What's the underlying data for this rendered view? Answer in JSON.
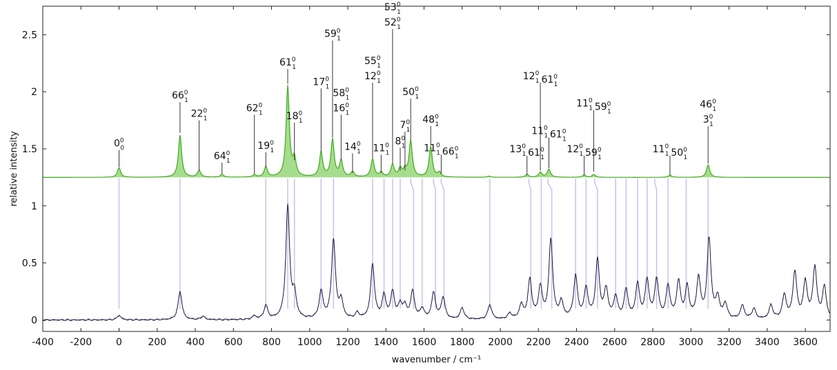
{
  "chart_data": {
    "type": "line",
    "title": "",
    "xlabel": "wavenumber / cm⁻¹",
    "ylabel": "relative intensity",
    "xlim": [
      -400,
      3730
    ],
    "ylim": [
      -0.1,
      2.75
    ],
    "x_ticks": [
      -400,
      -200,
      0,
      200,
      400,
      600,
      800,
      1000,
      1200,
      1400,
      1600,
      1800,
      2000,
      2200,
      2400,
      2600,
      2800,
      3000,
      3200,
      3400,
      3600
    ],
    "y_ticks": [
      0,
      0.5,
      1,
      1.5,
      2,
      2.5
    ],
    "y_tick_labels": [
      "0",
      "0.5",
      "1",
      "1.5",
      "2",
      "2.5"
    ],
    "grid": false,
    "legend": "none",
    "colors": {
      "simulated": "#3daa1e",
      "simulated_fill": "#a6dd8c",
      "experimental": "#161640",
      "connector": "#c3c3ee",
      "label_line": "#333333",
      "frame": "#222222"
    },
    "series": [
      {
        "role": "simulated",
        "baseline": 1.25,
        "linewidth": 10,
        "peaks": [
          [
            0,
            0.085
          ],
          [
            320,
            0.37
          ],
          [
            420,
            0.06
          ],
          [
            540,
            0.025
          ],
          [
            710,
            0.02
          ],
          [
            770,
            0.09
          ],
          [
            885,
            0.795
          ],
          [
            920,
            0.15
          ],
          [
            1060,
            0.215
          ],
          [
            1120,
            0.33
          ],
          [
            1165,
            0.14
          ],
          [
            1225,
            0.045
          ],
          [
            1330,
            0.16
          ],
          [
            1375,
            0.04
          ],
          [
            1435,
            0.11
          ],
          [
            1475,
            0.07
          ],
          [
            1500,
            0.06
          ],
          [
            1530,
            0.32
          ],
          [
            1635,
            0.27
          ],
          [
            1680,
            0.04
          ],
          [
            1940,
            0.01
          ],
          [
            2140,
            0.025
          ],
          [
            2210,
            0.045
          ],
          [
            2255,
            0.07
          ],
          [
            2440,
            0.02
          ],
          [
            2490,
            0.025
          ],
          [
            2890,
            0.02
          ],
          [
            3090,
            0.11
          ]
        ]
      },
      {
        "role": "experimental",
        "baseline": 0.0,
        "linewidth": 12,
        "peaks": [
          [
            0,
            0.04
          ],
          [
            320,
            0.25
          ],
          [
            440,
            0.03
          ],
          [
            710,
            0.03
          ],
          [
            770,
            0.12
          ],
          [
            885,
            0.99
          ],
          [
            920,
            0.2
          ],
          [
            1060,
            0.24
          ],
          [
            1125,
            0.7
          ],
          [
            1165,
            0.15
          ],
          [
            1250,
            0.05
          ],
          [
            1330,
            0.48
          ],
          [
            1390,
            0.2
          ],
          [
            1435,
            0.23
          ],
          [
            1475,
            0.12
          ],
          [
            1500,
            0.1
          ],
          [
            1540,
            0.24
          ],
          [
            1590,
            0.09
          ],
          [
            1650,
            0.23
          ],
          [
            1700,
            0.19
          ],
          [
            1800,
            0.1
          ],
          [
            1945,
            0.13
          ],
          [
            2050,
            0.05
          ],
          [
            2110,
            0.12
          ],
          [
            2155,
            0.34
          ],
          [
            2210,
            0.27
          ],
          [
            2265,
            0.69
          ],
          [
            2320,
            0.14
          ],
          [
            2395,
            0.37
          ],
          [
            2450,
            0.26
          ],
          [
            2510,
            0.51
          ],
          [
            2555,
            0.25
          ],
          [
            2605,
            0.19
          ],
          [
            2660,
            0.25
          ],
          [
            2720,
            0.3
          ],
          [
            2770,
            0.33
          ],
          [
            2820,
            0.34
          ],
          [
            2880,
            0.28
          ],
          [
            2935,
            0.32
          ],
          [
            2980,
            0.27
          ],
          [
            3040,
            0.35
          ],
          [
            3095,
            0.7
          ],
          [
            3140,
            0.18
          ],
          [
            3180,
            0.13
          ],
          [
            3270,
            0.12
          ],
          [
            3330,
            0.09
          ],
          [
            3420,
            0.12
          ],
          [
            3490,
            0.21
          ],
          [
            3545,
            0.41
          ],
          [
            3600,
            0.32
          ],
          [
            3650,
            0.45
          ],
          [
            3700,
            0.28
          ]
        ]
      }
    ],
    "connectors": [
      {
        "x": 0
      },
      {
        "x": 320
      },
      {
        "x": 770
      },
      {
        "x": 885
      },
      {
        "x": 920
      },
      {
        "x": 1060
      },
      {
        "x": 1125
      },
      {
        "x": 1330
      },
      {
        "x": 1390
      },
      {
        "x": 1435
      },
      {
        "x": 1475
      },
      {
        "x": 1530,
        "x2": 1545
      },
      {
        "x": 1590
      },
      {
        "x": 1650,
        "x2": 1660
      },
      {
        "x": 1690,
        "x2": 1705
      },
      {
        "x": 1945
      },
      {
        "x": 2150,
        "x2": 2160
      },
      {
        "x": 2215
      },
      {
        "x": 2250,
        "x2": 2270
      },
      {
        "x": 2395
      },
      {
        "x": 2450
      },
      {
        "x": 2495,
        "x2": 2510
      },
      {
        "x": 2605
      },
      {
        "x": 2660
      },
      {
        "x": 2720
      },
      {
        "x": 2770
      },
      {
        "x": 2810,
        "x2": 2820
      },
      {
        "x": 2880
      },
      {
        "x": 2975
      },
      {
        "x": 3090
      }
    ],
    "annotations": [
      {
        "x": 0,
        "y_tip": 1.34,
        "y_text": 1.52,
        "lines": [
          [
            [
              "0",
              "0",
              "0"
            ]
          ]
        ]
      },
      {
        "x": 320,
        "y_tip": 1.64,
        "y_text": 1.94,
        "lines": [
          [
            [
              "66",
              "0",
              "1"
            ]
          ]
        ]
      },
      {
        "x": 420,
        "y_tip": 1.31,
        "y_text": 1.78,
        "lines": [
          [
            [
              "22",
              "0",
              "1"
            ]
          ]
        ]
      },
      {
        "x": 540,
        "y_tip": 1.28,
        "y_text": 1.41,
        "lines": [
          [
            [
              "64",
              "0",
              "1"
            ]
          ]
        ]
      },
      {
        "x": 710,
        "y_tip": 1.28,
        "y_text": 1.83,
        "lines": [
          [
            [
              "62",
              "0",
              "1"
            ]
          ]
        ]
      },
      {
        "x": 770,
        "y_tip": 1.34,
        "y_text": 1.5,
        "lines": [
          [
            [
              "19",
              "0",
              "1"
            ]
          ]
        ]
      },
      {
        "x": 885,
        "y_tip": 2.07,
        "y_text": 2.23,
        "lines": [
          [
            [
              "61",
              "0",
              "1"
            ]
          ]
        ]
      },
      {
        "x": 920,
        "y_tip": 1.4,
        "y_text": 1.76,
        "lines": [
          [
            [
              "18",
              "0",
              "1"
            ]
          ]
        ]
      },
      {
        "x": 1060,
        "y_tip": 1.47,
        "y_text": 2.06,
        "lines": [
          [
            [
              "17",
              "0",
              "1"
            ]
          ]
        ]
      },
      {
        "x": 1120,
        "y_tip": 1.6,
        "y_text": 2.48,
        "lines": [
          [
            [
              "59",
              "0",
              "1"
            ]
          ]
        ]
      },
      {
        "x": 1165,
        "y_tip": 1.4,
        "y_text": 1.83,
        "lines": [
          [
            [
              "58",
              "0",
              "1"
            ]
          ],
          [
            [
              "16",
              "0",
              "1"
            ]
          ]
        ]
      },
      {
        "x": 1225,
        "y_tip": 1.29,
        "y_text": 1.49,
        "lines": [
          [
            [
              "14",
              "0",
              "1"
            ]
          ]
        ]
      },
      {
        "x": 1330,
        "y_tip": 1.42,
        "y_text": 2.11,
        "lines": [
          [
            [
              "55",
              "0",
              "1"
            ]
          ],
          [
            [
              "12",
              "0",
              "1"
            ]
          ]
        ]
      },
      {
        "x": 1375,
        "y_tip": 1.29,
        "y_text": 1.48,
        "lines": [
          [
            [
              "11",
              "0",
              "1"
            ]
          ]
        ]
      },
      {
        "x": 1435,
        "y_tip": 1.37,
        "y_text": 2.58,
        "lines": [
          [
            [
              "53",
              "0",
              "1"
            ]
          ],
          [
            [
              "52",
              "0",
              "1"
            ]
          ]
        ]
      },
      {
        "x": 1475,
        "y_tip": 1.31,
        "y_text": 1.54,
        "lines": [
          [
            [
              "8",
              "0",
              "1"
            ]
          ]
        ]
      },
      {
        "x": 1500,
        "y_tip": 1.31,
        "y_text": 1.68,
        "lines": [
          [
            [
              "7",
              "0",
              "1"
            ]
          ]
        ]
      },
      {
        "x": 1530,
        "y_tip": 1.58,
        "y_text": 1.97,
        "lines": [
          [
            [
              "50",
              "0",
              "1"
            ]
          ]
        ]
      },
      {
        "x": 1635,
        "y_tip": 1.53,
        "y_text": 1.73,
        "lines": [
          [
            [
              "48",
              "0",
              "1"
            ]
          ]
        ]
      },
      {
        "x": 1690,
        "y_tip": 1.28,
        "y_text": 1.48,
        "lines": [
          [
            [
              "11",
              "0",
              "1"
            ],
            [
              "66",
              "0",
              "1"
            ]
          ]
        ]
      },
      {
        "x": 2140,
        "y_tip": 1.27,
        "y_text": 1.47,
        "lines": [
          [
            [
              "13",
              "0",
              "1"
            ],
            [
              "61",
              "0",
              "1"
            ]
          ]
        ]
      },
      {
        "x": 2210,
        "y_tip": 1.31,
        "y_text": 2.11,
        "lines": [
          [
            [
              "12",
              "0",
              "1"
            ],
            [
              "61",
              "0",
              "1"
            ]
          ]
        ]
      },
      {
        "x": 2255,
        "y_tip": 1.33,
        "y_text": 1.63,
        "lines": [
          [
            [
              "11",
              "0",
              "1"
            ],
            [
              "61",
              "0",
              "1"
            ]
          ]
        ]
      },
      {
        "x": 2440,
        "y_tip": 1.27,
        "y_text": 1.47,
        "lines": [
          [
            [
              "12",
              "0",
              "1"
            ],
            [
              "59",
              "0",
              "1"
            ]
          ]
        ]
      },
      {
        "x": 2490,
        "y_tip": 1.3,
        "y_text": 1.87,
        "lines": [
          [
            [
              "11",
              "0",
              "1"
            ],
            [
              "59",
              "0",
              "1"
            ]
          ]
        ]
      },
      {
        "x": 2890,
        "y_tip": 1.27,
        "y_text": 1.47,
        "lines": [
          [
            [
              "11",
              "0",
              "1"
            ],
            [
              "50",
              "0",
              "1"
            ]
          ]
        ]
      },
      {
        "x": 3090,
        "y_tip": 1.37,
        "y_text": 1.73,
        "lines": [
          [
            [
              "46",
              "0",
              "1"
            ]
          ],
          [
            [
              "3",
              "0",
              "1"
            ]
          ]
        ]
      }
    ]
  }
}
